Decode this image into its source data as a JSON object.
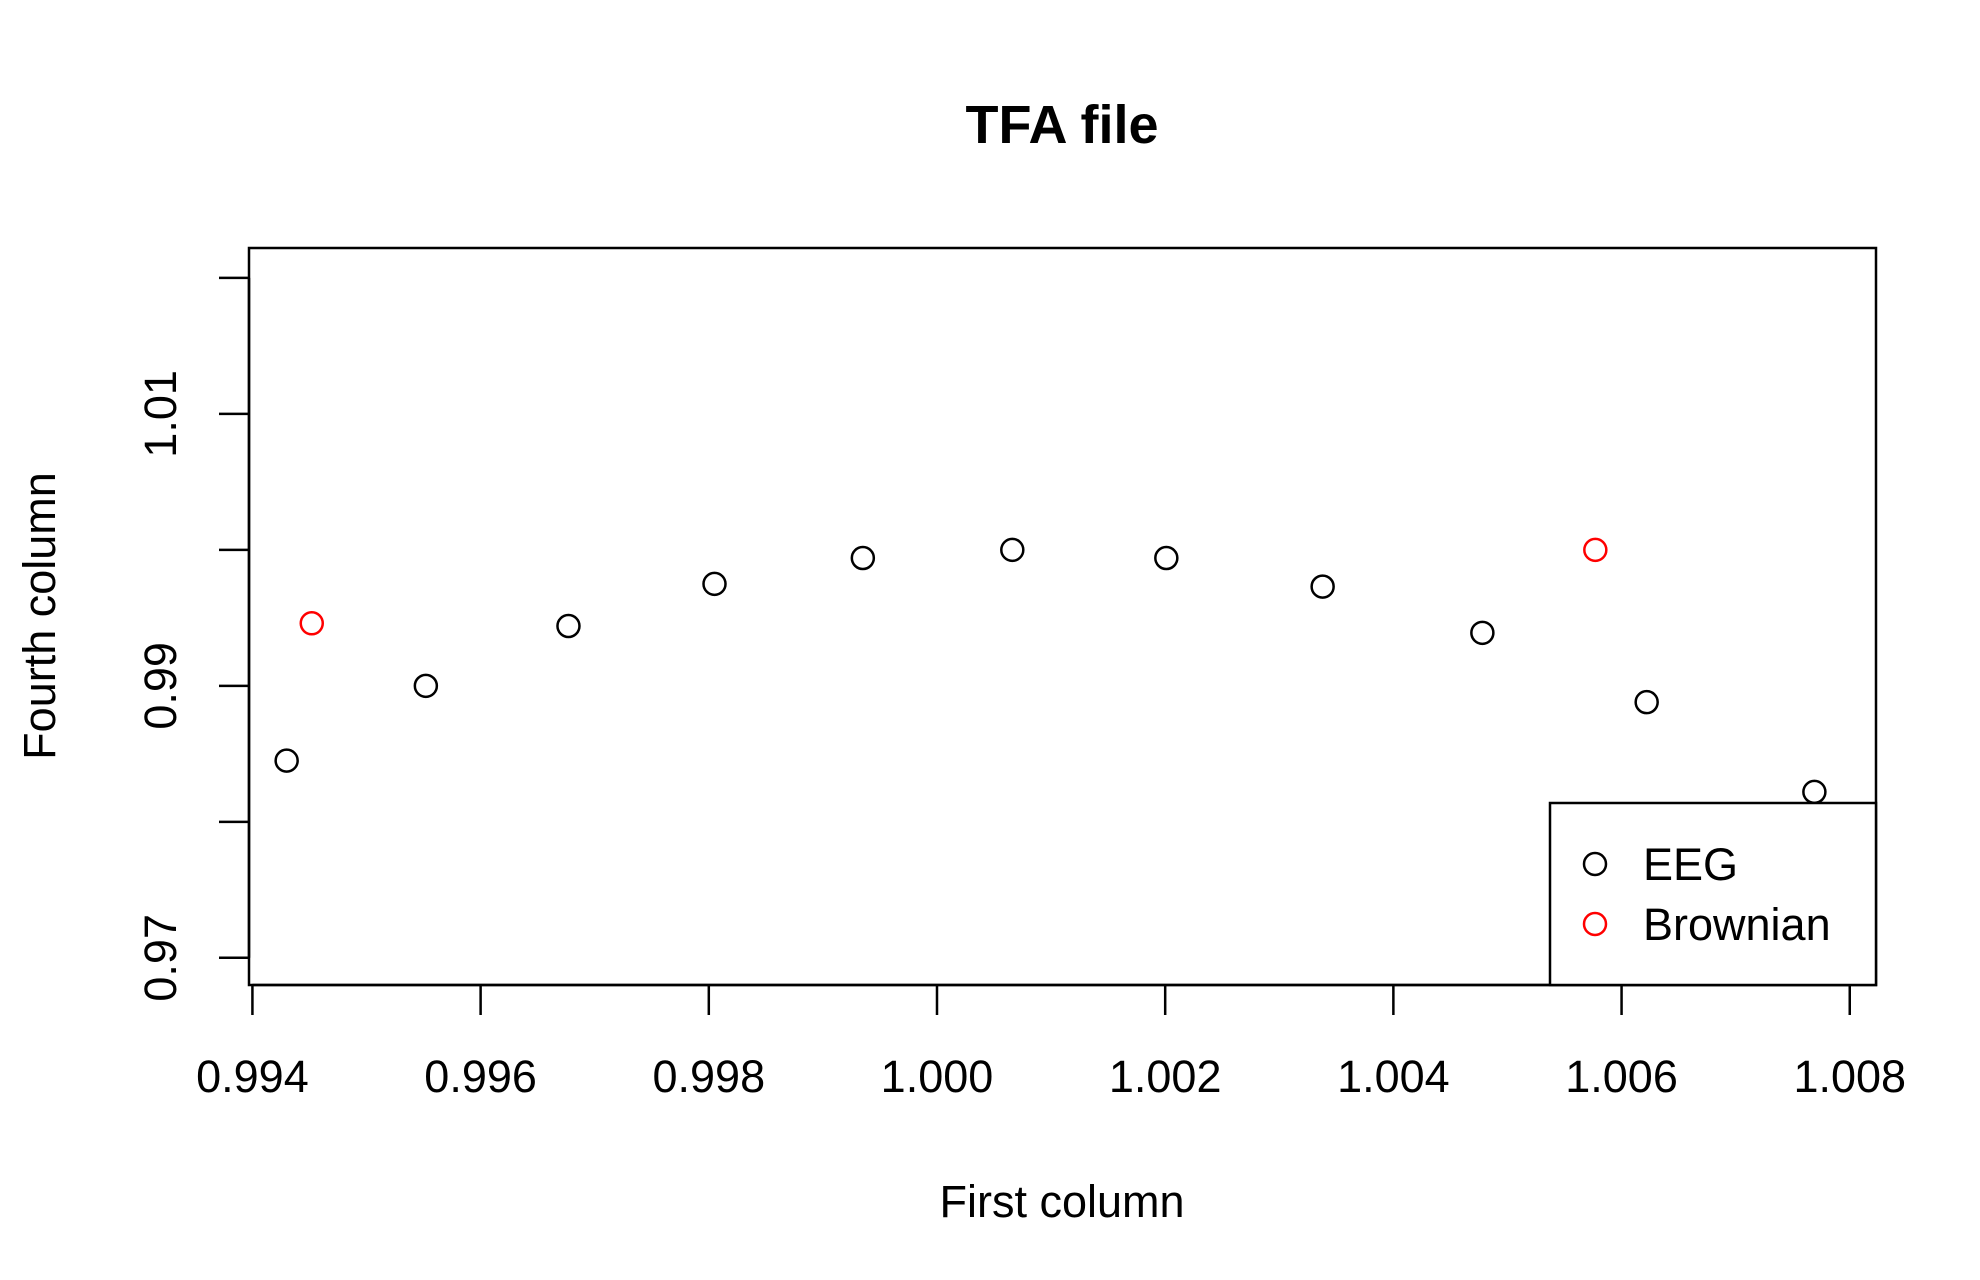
{
  "chart_data": {
    "type": "scatter",
    "title": "TFA file",
    "xlabel": "First column",
    "ylabel": "Fourth column",
    "xlim": [
      0.99397,
      1.00823
    ],
    "ylim": [
      0.968,
      1.0222
    ],
    "x_ticks": [
      0.994,
      0.996,
      0.998,
      1.0,
      1.002,
      1.004,
      1.006,
      1.008
    ],
    "x_tick_labels": [
      "0.994",
      "0.996",
      "0.998",
      "1.000",
      "1.002",
      "1.004",
      "1.006",
      "1.008"
    ],
    "y_ticks": [
      0.97,
      0.98,
      0.99,
      1.0,
      1.01,
      1.02
    ],
    "y_tick_labels": [
      "0.97",
      "",
      "0.99",
      "",
      "1.01",
      ""
    ],
    "grid": false,
    "legend_position": "bottom-right",
    "series": [
      {
        "name": "EEG",
        "color": "#000000",
        "marker": "open-circle",
        "points": [
          [
            0.9943,
            0.9845
          ],
          [
            0.99552,
            0.99
          ],
          [
            0.99677,
            0.9944
          ],
          [
            0.99805,
            0.9975
          ],
          [
            0.99935,
            0.9994
          ],
          [
            1.00066,
            1.0
          ],
          [
            1.00201,
            0.9994
          ],
          [
            1.00338,
            0.9973
          ],
          [
            1.00478,
            0.9939
          ],
          [
            1.00622,
            0.9888
          ],
          [
            1.00769,
            0.9822
          ]
        ]
      },
      {
        "name": "Brownian",
        "color": "#ff0000",
        "marker": "open-circle",
        "points": [
          [
            0.99452,
            0.9946
          ],
          [
            1.00577,
            1.0
          ]
        ]
      }
    ]
  }
}
